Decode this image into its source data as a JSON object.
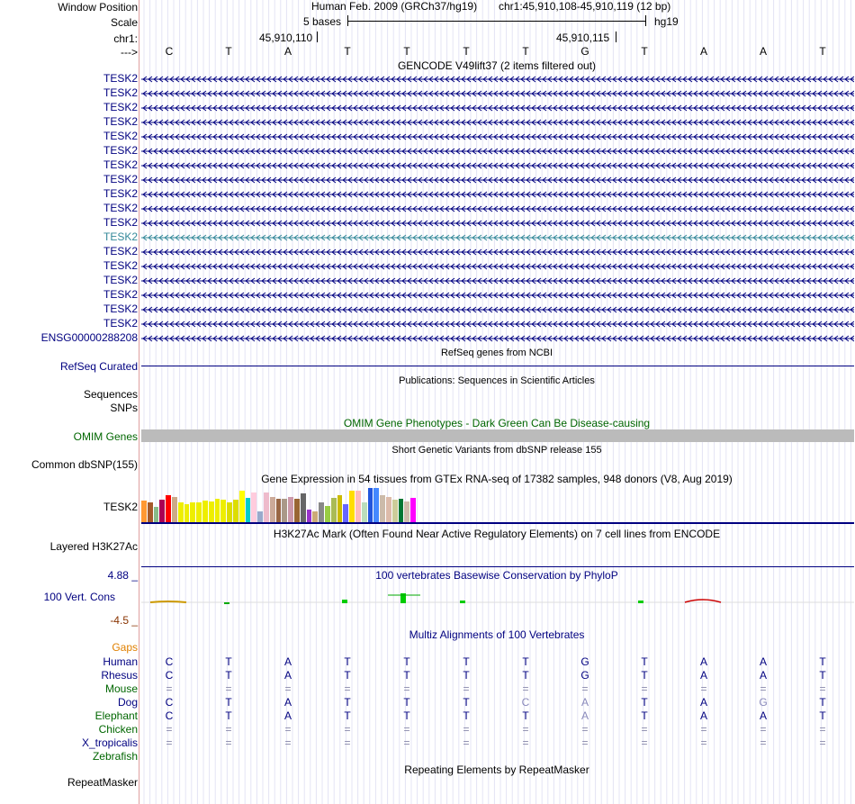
{
  "header": {
    "window_position_label": "Window Position",
    "scale_label": "Scale",
    "chrom_label": "chr1:",
    "arrow_label": "--->",
    "assembly": "Human Feb. 2009 (GRCh37/hg19)",
    "position": "chr1:45,910,108-45,910,119 (12 bp)",
    "scale_text": "5 bases",
    "db": "hg19",
    "coord_left": "45,910,110",
    "coord_right": "45,910,115"
  },
  "bases": [
    "C",
    "T",
    "A",
    "T",
    "T",
    "T",
    "T",
    "G",
    "T",
    "A",
    "A",
    "T"
  ],
  "gencode": {
    "title": "GENCODE V49lift37 (2 items filtered out)",
    "genes": [
      "TESK2",
      "TESK2",
      "TESK2",
      "TESK2",
      "TESK2",
      "TESK2",
      "TESK2",
      "TESK2",
      "TESK2",
      "TESK2",
      "TESK2",
      "TESK2",
      "TESK2",
      "TESK2",
      "TESK2",
      "TESK2",
      "TESK2",
      "TESK2"
    ],
    "last_gene": "ENSG00000288208",
    "highlight_index": 11
  },
  "refseq": {
    "title": "RefSeq genes from NCBI",
    "label": "RefSeq Curated"
  },
  "publications": {
    "title": "Publications: Sequences in Scientific Articles",
    "label_seq": "Sequences",
    "label_snp": "SNPs"
  },
  "omim": {
    "title": "OMIM Gene Phenotypes - Dark Green Can Be Disease-causing",
    "label": "OMIM Genes"
  },
  "dbsnp": {
    "title": "Short Genetic Variants from dbSNP release 155",
    "label": "Common dbSNP(155)"
  },
  "gtex": {
    "title": "Gene Expression in 54 tissues from GTEx RNA-seq of 17382 samples, 948 donors (V8, Aug 2019)",
    "label": "TESK2",
    "colors": [
      "#ff9933",
      "#a55a2a",
      "#88bb88",
      "#aa0055",
      "#ff0000",
      "#ccaa88",
      "#eeee00",
      "#eeee00",
      "#eeee00",
      "#eeee00",
      "#eeee00",
      "#eeee00",
      "#eeee00",
      "#eeee00",
      "#dddd00",
      "#dddd00",
      "#ffff00",
      "#00cccc",
      "#ffccdd",
      "#99aacc",
      "#eebbcc",
      "#ccaa99",
      "#996644",
      "#aa9988",
      "#cc99aa",
      "#996633",
      "#666666",
      "#9933cc",
      "#ccaa77",
      "#888888",
      "#99cc44",
      "#aabb55",
      "#ccbb00",
      "#6666ff",
      "#ffdd00",
      "#ffbbbb",
      "#bbddbb",
      "#2255dd",
      "#4488ff",
      "#ccbbaa",
      "#ddbbaa",
      "#cccc99",
      "#007733",
      "#ccbbaa",
      "#ff00ff"
    ],
    "values": [
      24,
      22,
      17,
      25,
      30,
      28,
      22,
      20,
      22,
      22,
      24,
      23,
      26,
      25,
      22,
      25,
      35,
      27,
      33,
      12,
      33,
      28,
      26,
      26,
      28,
      26,
      32,
      14,
      12,
      22,
      18,
      27,
      30,
      20,
      35,
      35,
      22,
      38,
      38,
      30,
      28,
      25,
      26,
      23,
      27
    ]
  },
  "h3k27ac": {
    "title": "H3K27Ac Mark (Often Found Near Active Regulatory Elements) on 7 cell lines from ENCODE",
    "label": "Layered H3K27Ac"
  },
  "phylop": {
    "title": "100 vertebrates Basewise Conservation by PhyloP",
    "label": "100 Vert. Cons",
    "max": "4.88 _",
    "min": "-4.5 _"
  },
  "multiz": {
    "title": "Multiz Alignments of 100 Vertebrates",
    "gaps_label": "Gaps",
    "species": [
      {
        "name": "Human",
        "cls": "navy",
        "row": [
          "C",
          "T",
          "A",
          "T",
          "T",
          "T",
          "T",
          "G",
          "T",
          "A",
          "A",
          "T"
        ]
      },
      {
        "name": "Rhesus",
        "cls": "navy",
        "row": [
          "C",
          "T",
          "A",
          "T",
          "T",
          "T",
          "T",
          "G",
          "T",
          "A",
          "A",
          "T"
        ]
      },
      {
        "name": "Mouse",
        "cls": "green",
        "row": [
          "=",
          "=",
          "=",
          "=",
          "=",
          "=",
          "=",
          "=",
          "=",
          "=",
          "=",
          "="
        ]
      },
      {
        "name": "Dog",
        "cls": "navy",
        "row": [
          "C",
          "T",
          "A",
          "T",
          "T",
          "T",
          "C",
          "A",
          "T",
          "A",
          "G",
          "T"
        ]
      },
      {
        "name": "Elephant",
        "cls": "green",
        "row": [
          "C",
          "T",
          "A",
          "T",
          "T",
          "T",
          "T",
          "A",
          "T",
          "A",
          "A",
          "T"
        ]
      },
      {
        "name": "Chicken",
        "cls": "green",
        "row": [
          "=",
          "=",
          "=",
          "=",
          "=",
          "=",
          "=",
          "=",
          "=",
          "=",
          "=",
          "="
        ]
      },
      {
        "name": "X_tropicalis",
        "cls": "navy",
        "row": [
          "=",
          "=",
          "=",
          "=",
          "=",
          "=",
          "=",
          "=",
          "=",
          "=",
          "=",
          "="
        ]
      },
      {
        "name": "Zebrafish",
        "cls": "green",
        "row": [
          "",
          "",
          "",
          "",
          "",
          "",
          "",
          "",
          "",
          "",
          "",
          ""
        ]
      }
    ]
  },
  "repeatmasker": {
    "title": "Repeating Elements by RepeatMasker",
    "label": "RepeatMasker"
  }
}
